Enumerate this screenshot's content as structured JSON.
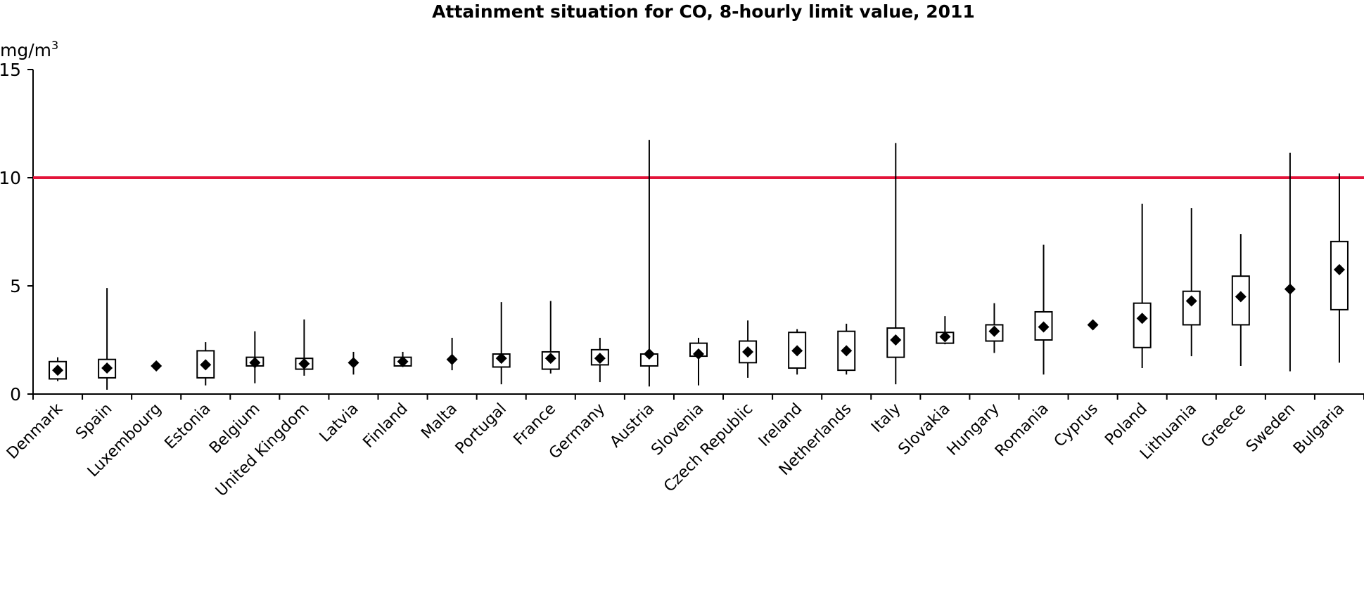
{
  "chart_data": {
    "type": "boxplot",
    "title": "Attainment situation for CO, 8-hourly limit value, 2011",
    "unit": "mg/m",
    "unit_superscript": "3",
    "ylim": [
      0,
      15
    ],
    "yticks": [
      0,
      5,
      10,
      15
    ],
    "limit_value": 10,
    "limit_color": "#e3143a",
    "grid": false,
    "categories": [
      "Denmark",
      "Spain",
      "Luxembourg",
      "Estonia",
      "Belgium",
      "United Kingdom",
      "Latvia",
      "Finland",
      "Malta",
      "Portugal",
      "France",
      "Germany",
      "Austria",
      "Slovenia",
      "Czech Republic",
      "Ireland",
      "Netherlands",
      "Italy",
      "Slovakia",
      "Hungary",
      "Romania",
      "Cyprus",
      "Poland",
      "Lithuania",
      "Greece",
      "Sweden",
      "Bulgaria"
    ],
    "series": [
      {
        "min": 0.6,
        "q1": 0.7,
        "median": 1.1,
        "q3": 1.5,
        "max": 1.7
      },
      {
        "min": 0.2,
        "q1": 0.75,
        "median": 1.2,
        "q3": 1.6,
        "max": 4.9
      },
      {
        "min": null,
        "q1": null,
        "median": 1.3,
        "q3": null,
        "max": null
      },
      {
        "min": 0.4,
        "q1": 0.75,
        "median": 1.35,
        "q3": 2.0,
        "max": 2.4
      },
      {
        "min": 0.5,
        "q1": 1.3,
        "median": 1.45,
        "q3": 1.7,
        "max": 2.9
      },
      {
        "min": 0.85,
        "q1": 1.15,
        "median": 1.4,
        "q3": 1.65,
        "max": 3.45
      },
      {
        "min": 0.9,
        "q1": null,
        "median": 1.45,
        "q3": null,
        "max": 1.95
      },
      {
        "min": 1.25,
        "q1": 1.3,
        "median": 1.5,
        "q3": 1.7,
        "max": 1.95
      },
      {
        "min": 1.1,
        "q1": null,
        "median": 1.6,
        "q3": null,
        "max": 2.6
      },
      {
        "min": 0.45,
        "q1": 1.25,
        "median": 1.65,
        "q3": 1.85,
        "max": 4.25
      },
      {
        "min": 0.95,
        "q1": 1.15,
        "median": 1.65,
        "q3": 1.95,
        "max": 4.3
      },
      {
        "min": 0.55,
        "q1": 1.35,
        "median": 1.65,
        "q3": 2.05,
        "max": 2.6
      },
      {
        "min": 0.35,
        "q1": 1.3,
        "median": 1.85,
        "q3": 1.85,
        "max": 11.75
      },
      {
        "min": 0.4,
        "q1": 1.75,
        "median": 1.85,
        "q3": 2.35,
        "max": 2.6
      },
      {
        "min": 0.75,
        "q1": 1.45,
        "median": 1.95,
        "q3": 2.45,
        "max": 3.4
      },
      {
        "min": 0.9,
        "q1": 1.2,
        "median": 2.0,
        "q3": 2.85,
        "max": 3.0
      },
      {
        "min": 0.9,
        "q1": 1.1,
        "median": 2.0,
        "q3": 2.9,
        "max": 3.25
      },
      {
        "min": 0.45,
        "q1": 1.7,
        "median": 2.5,
        "q3": 3.05,
        "max": 11.6
      },
      {
        "min": 2.3,
        "q1": 2.35,
        "median": 2.65,
        "q3": 2.85,
        "max": 3.6
      },
      {
        "min": 1.9,
        "q1": 2.45,
        "median": 2.9,
        "q3": 3.2,
        "max": 4.2
      },
      {
        "min": 0.9,
        "q1": 2.5,
        "median": 3.1,
        "q3": 3.8,
        "max": 6.9
      },
      {
        "min": null,
        "q1": null,
        "median": 3.2,
        "q3": null,
        "max": null
      },
      {
        "min": 1.2,
        "q1": 2.15,
        "median": 3.5,
        "q3": 4.2,
        "max": 8.8
      },
      {
        "min": 1.75,
        "q1": 3.2,
        "median": 4.3,
        "q3": 4.75,
        "max": 8.6
      },
      {
        "min": 1.3,
        "q1": 3.2,
        "median": 4.5,
        "q3": 5.45,
        "max": 7.4
      },
      {
        "min": 1.05,
        "q1": null,
        "median": 4.85,
        "q3": null,
        "max": 11.15
      },
      {
        "min": 1.45,
        "q1": 3.9,
        "median": 5.75,
        "q3": 7.05,
        "max": 10.2
      }
    ]
  }
}
